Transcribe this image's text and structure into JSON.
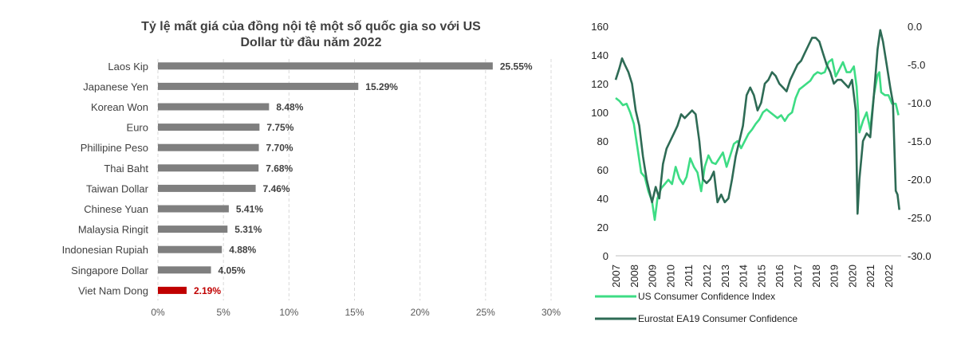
{
  "chart_data": [
    {
      "type": "bar",
      "orientation": "horizontal",
      "title": [
        "Tỷ lệ mất giá của đồng nội tệ một số quốc gia so với US",
        "Dollar từ đầu năm 2022"
      ],
      "categories": [
        "Laos Kip",
        "Japanese Yen",
        "Korean Won",
        "Euro",
        "Phillipine Peso",
        "Thai Baht",
        "Taiwan Dollar",
        "Chinese Yuan",
        "Malaysia Ringit",
        "Indonesian Rupiah",
        "Singapore Dollar",
        "Viet Nam Dong"
      ],
      "values": [
        25.55,
        15.29,
        8.48,
        7.75,
        7.7,
        7.68,
        7.46,
        5.41,
        5.31,
        4.88,
        4.05,
        2.19
      ],
      "value_labels": [
        "25.55%",
        "15.29%",
        "8.48%",
        "7.75%",
        "7.70%",
        "7.68%",
        "7.46%",
        "5.41%",
        "5.31%",
        "4.88%",
        "4.05%",
        "2.19%"
      ],
      "highlight": "Viet Nam Dong",
      "xlim": [
        0,
        30
      ],
      "x_ticks": [
        "0%",
        "5%",
        "10%",
        "15%",
        "20%",
        "25%",
        "30%"
      ],
      "colors": {
        "bar": "#7f7f7f",
        "highlight": "#c00000",
        "label": "#404040",
        "highlight_label": "#c00000"
      }
    },
    {
      "type": "line",
      "x_ticks": [
        "2007",
        "2008",
        "2009",
        "2010",
        "2011",
        "2012",
        "2013",
        "2014",
        "2015",
        "2016",
        "2017",
        "2018",
        "2019",
        "2020",
        "2021",
        "2022"
      ],
      "xlim": [
        2007,
        2022.7
      ],
      "y_left": {
        "ylim": [
          0,
          160
        ],
        "ticks": [
          "0",
          "20",
          "40",
          "60",
          "80",
          "100",
          "120",
          "140",
          "160"
        ]
      },
      "y_right": {
        "ylim": [
          -30,
          0
        ],
        "ticks": [
          "0.0",
          "-5.0",
          "-10.0",
          "-15.0",
          "-20.0",
          "-25.0",
          "-30.0"
        ]
      },
      "series": [
        {
          "name": "US Consumer Confidence Index",
          "axis": "left",
          "color": "#3ddc84",
          "points": [
            [
              2007.0,
              110
            ],
            [
              2007.2,
              108
            ],
            [
              2007.4,
              105
            ],
            [
              2007.6,
              106
            ],
            [
              2007.8,
              100
            ],
            [
              2008.0,
              92
            ],
            [
              2008.2,
              75
            ],
            [
              2008.4,
              58
            ],
            [
              2008.6,
              55
            ],
            [
              2008.8,
              45
            ],
            [
              2009.0,
              38
            ],
            [
              2009.15,
              25
            ],
            [
              2009.3,
              40
            ],
            [
              2009.5,
              47
            ],
            [
              2009.7,
              50
            ],
            [
              2009.9,
              53
            ],
            [
              2010.1,
              50
            ],
            [
              2010.3,
              62
            ],
            [
              2010.5,
              54
            ],
            [
              2010.7,
              50
            ],
            [
              2010.9,
              55
            ],
            [
              2011.1,
              68
            ],
            [
              2011.3,
              62
            ],
            [
              2011.5,
              58
            ],
            [
              2011.7,
              45
            ],
            [
              2011.9,
              62
            ],
            [
              2012.1,
              70
            ],
            [
              2012.3,
              65
            ],
            [
              2012.5,
              64
            ],
            [
              2012.7,
              68
            ],
            [
              2012.9,
              72
            ],
            [
              2013.1,
              62
            ],
            [
              2013.3,
              70
            ],
            [
              2013.5,
              78
            ],
            [
              2013.7,
              80
            ],
            [
              2013.9,
              75
            ],
            [
              2014.1,
              80
            ],
            [
              2014.3,
              85
            ],
            [
              2014.5,
              88
            ],
            [
              2014.7,
              92
            ],
            [
              2014.9,
              95
            ],
            [
              2015.1,
              100
            ],
            [
              2015.3,
              102
            ],
            [
              2015.5,
              100
            ],
            [
              2015.7,
              98
            ],
            [
              2015.9,
              96
            ],
            [
              2016.1,
              98
            ],
            [
              2016.3,
              94
            ],
            [
              2016.5,
              98
            ],
            [
              2016.7,
              100
            ],
            [
              2016.9,
              110
            ],
            [
              2017.1,
              116
            ],
            [
              2017.3,
              118
            ],
            [
              2017.5,
              120
            ],
            [
              2017.7,
              122
            ],
            [
              2017.9,
              126
            ],
            [
              2018.1,
              128
            ],
            [
              2018.3,
              127
            ],
            [
              2018.5,
              128
            ],
            [
              2018.7,
              135
            ],
            [
              2018.9,
              137
            ],
            [
              2019.1,
              125
            ],
            [
              2019.3,
              130
            ],
            [
              2019.5,
              135
            ],
            [
              2019.7,
              128
            ],
            [
              2019.9,
              128
            ],
            [
              2020.1,
              132
            ],
            [
              2020.25,
              118
            ],
            [
              2020.4,
              86
            ],
            [
              2020.6,
              94
            ],
            [
              2020.8,
              100
            ],
            [
              2021.0,
              88
            ],
            [
              2021.2,
              112
            ],
            [
              2021.4,
              126
            ],
            [
              2021.5,
              128
            ],
            [
              2021.6,
              114
            ],
            [
              2021.8,
              112
            ],
            [
              2022.0,
              112
            ],
            [
              2022.2,
              106
            ],
            [
              2022.4,
              106
            ],
            [
              2022.55,
              98
            ]
          ]
        },
        {
          "name": "Eurostat EA19 Consumer Confidence",
          "axis": "right",
          "color": "#2e6b55",
          "points": [
            [
              2007.0,
              -7
            ],
            [
              2007.2,
              -5.5
            ],
            [
              2007.35,
              -4.2
            ],
            [
              2007.5,
              -5
            ],
            [
              2007.7,
              -6
            ],
            [
              2007.9,
              -7.5
            ],
            [
              2008.1,
              -11
            ],
            [
              2008.3,
              -13
            ],
            [
              2008.5,
              -17
            ],
            [
              2008.7,
              -20
            ],
            [
              2008.9,
              -22
            ],
            [
              2009.0,
              -23
            ],
            [
              2009.2,
              -21
            ],
            [
              2009.4,
              -22.5
            ],
            [
              2009.6,
              -18
            ],
            [
              2009.8,
              -16
            ],
            [
              2010.0,
              -15
            ],
            [
              2010.2,
              -14
            ],
            [
              2010.4,
              -13
            ],
            [
              2010.6,
              -11.5
            ],
            [
              2010.8,
              -12
            ],
            [
              2011.0,
              -11.5
            ],
            [
              2011.2,
              -11
            ],
            [
              2011.4,
              -11.5
            ],
            [
              2011.6,
              -15
            ],
            [
              2011.8,
              -20
            ],
            [
              2012.0,
              -20.5
            ],
            [
              2012.2,
              -20
            ],
            [
              2012.4,
              -19
            ],
            [
              2012.6,
              -23
            ],
            [
              2012.8,
              -22
            ],
            [
              2013.0,
              -23
            ],
            [
              2013.2,
              -22.5
            ],
            [
              2013.4,
              -20
            ],
            [
              2013.6,
              -17
            ],
            [
              2013.8,
              -15
            ],
            [
              2014.0,
              -13
            ],
            [
              2014.2,
              -9
            ],
            [
              2014.4,
              -8
            ],
            [
              2014.6,
              -9
            ],
            [
              2014.8,
              -11
            ],
            [
              2015.0,
              -10
            ],
            [
              2015.2,
              -7.5
            ],
            [
              2015.4,
              -7
            ],
            [
              2015.6,
              -6
            ],
            [
              2015.8,
              -6.5
            ],
            [
              2016.0,
              -7.5
            ],
            [
              2016.2,
              -8
            ],
            [
              2016.4,
              -8.5
            ],
            [
              2016.6,
              -7
            ],
            [
              2016.8,
              -6
            ],
            [
              2017.0,
              -5
            ],
            [
              2017.2,
              -4.5
            ],
            [
              2017.4,
              -3.5
            ],
            [
              2017.6,
              -2.5
            ],
            [
              2017.8,
              -1.5
            ],
            [
              2018.0,
              -1.5
            ],
            [
              2018.2,
              -2
            ],
            [
              2018.4,
              -3.5
            ],
            [
              2018.6,
              -5
            ],
            [
              2018.8,
              -6
            ],
            [
              2019.0,
              -7.5
            ],
            [
              2019.2,
              -7
            ],
            [
              2019.4,
              -7
            ],
            [
              2019.6,
              -7.5
            ],
            [
              2019.8,
              -8
            ],
            [
              2020.0,
              -7
            ],
            [
              2020.2,
              -11
            ],
            [
              2020.3,
              -24.5
            ],
            [
              2020.4,
              -20
            ],
            [
              2020.6,
              -15
            ],
            [
              2020.8,
              -14
            ],
            [
              2021.0,
              -14.5
            ],
            [
              2021.2,
              -9
            ],
            [
              2021.4,
              -3
            ],
            [
              2021.55,
              -0.5
            ],
            [
              2021.7,
              -2
            ],
            [
              2021.9,
              -5
            ],
            [
              2022.1,
              -8
            ],
            [
              2022.25,
              -10
            ],
            [
              2022.4,
              -21.5
            ],
            [
              2022.5,
              -22
            ],
            [
              2022.6,
              -24
            ]
          ]
        }
      ],
      "legend": [
        "US Consumer Confidence Index",
        "Eurostat EA19 Consumer Confidence"
      ],
      "legend_position": "bottom"
    }
  ]
}
